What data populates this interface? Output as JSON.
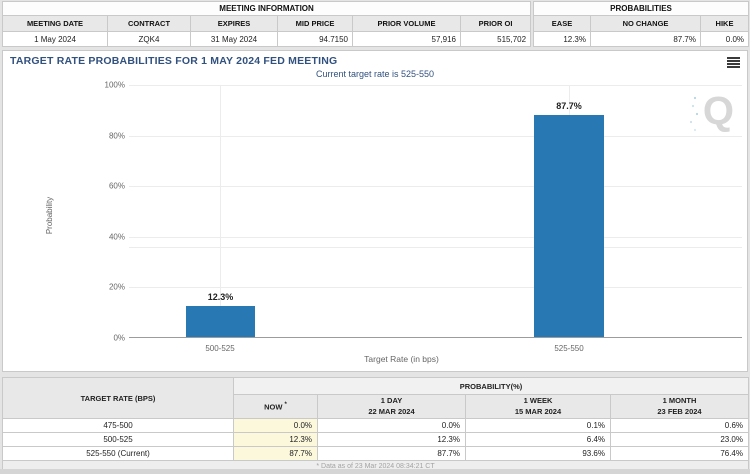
{
  "meeting_info": {
    "title": "MEETING INFORMATION",
    "columns": [
      "MEETING DATE",
      "CONTRACT",
      "EXPIRES",
      "MID PRICE",
      "PRIOR VOLUME",
      "PRIOR OI"
    ],
    "values": [
      "1 May 2024",
      "ZQK4",
      "31 May 2024",
      "94.7150",
      "57,916",
      "515,702"
    ]
  },
  "probabilities_summary": {
    "title": "PROBABILITIES",
    "columns": [
      "EASE",
      "NO CHANGE",
      "HIKE"
    ],
    "values": [
      "12.3%",
      "87.7%",
      "0.0%"
    ]
  },
  "chart_data": {
    "type": "bar",
    "title": "TARGET RATE PROBABILITIES FOR 1 MAY 2024 FED MEETING",
    "subtitle": "Current target rate is 525-550",
    "categories": [
      "500-525",
      "525-550"
    ],
    "values": [
      12.3,
      87.7
    ],
    "value_labels": [
      "12.3%",
      "87.7%"
    ],
    "xlabel": "Target Rate (in bps)",
    "ylabel": "Probability",
    "ylim": [
      0,
      100
    ],
    "yticks_top_to_bottom": [
      "100%",
      "80%",
      "60%",
      "40%",
      "20%",
      "0%"
    ],
    "grid": true,
    "legend": "none",
    "bar_color": "#2878b4",
    "watermark": "Q"
  },
  "history_table": {
    "rate_header": "TARGET RATE (BPS)",
    "group_header": "PROBABILITY(%)",
    "col_headers": [
      {
        "label": "NOW",
        "sup": "*",
        "date": ""
      },
      {
        "label": "1 DAY",
        "date": "22 MAR 2024"
      },
      {
        "label": "1 WEEK",
        "date": "15 MAR 2024"
      },
      {
        "label": "1 MONTH",
        "date": "23 FEB 2024"
      }
    ],
    "rows": [
      {
        "rate": "475-500",
        "values": [
          "0.0%",
          "0.0%",
          "0.1%",
          "0.6%"
        ]
      },
      {
        "rate": "500-525",
        "values": [
          "12.3%",
          "12.3%",
          "6.4%",
          "23.0%"
        ]
      },
      {
        "rate": "525-550 (Current)",
        "values": [
          "87.7%",
          "87.7%",
          "93.6%",
          "76.4%"
        ]
      }
    ],
    "footnote": "* Data as of 23 Mar 2024 08:34:21 CT"
  }
}
